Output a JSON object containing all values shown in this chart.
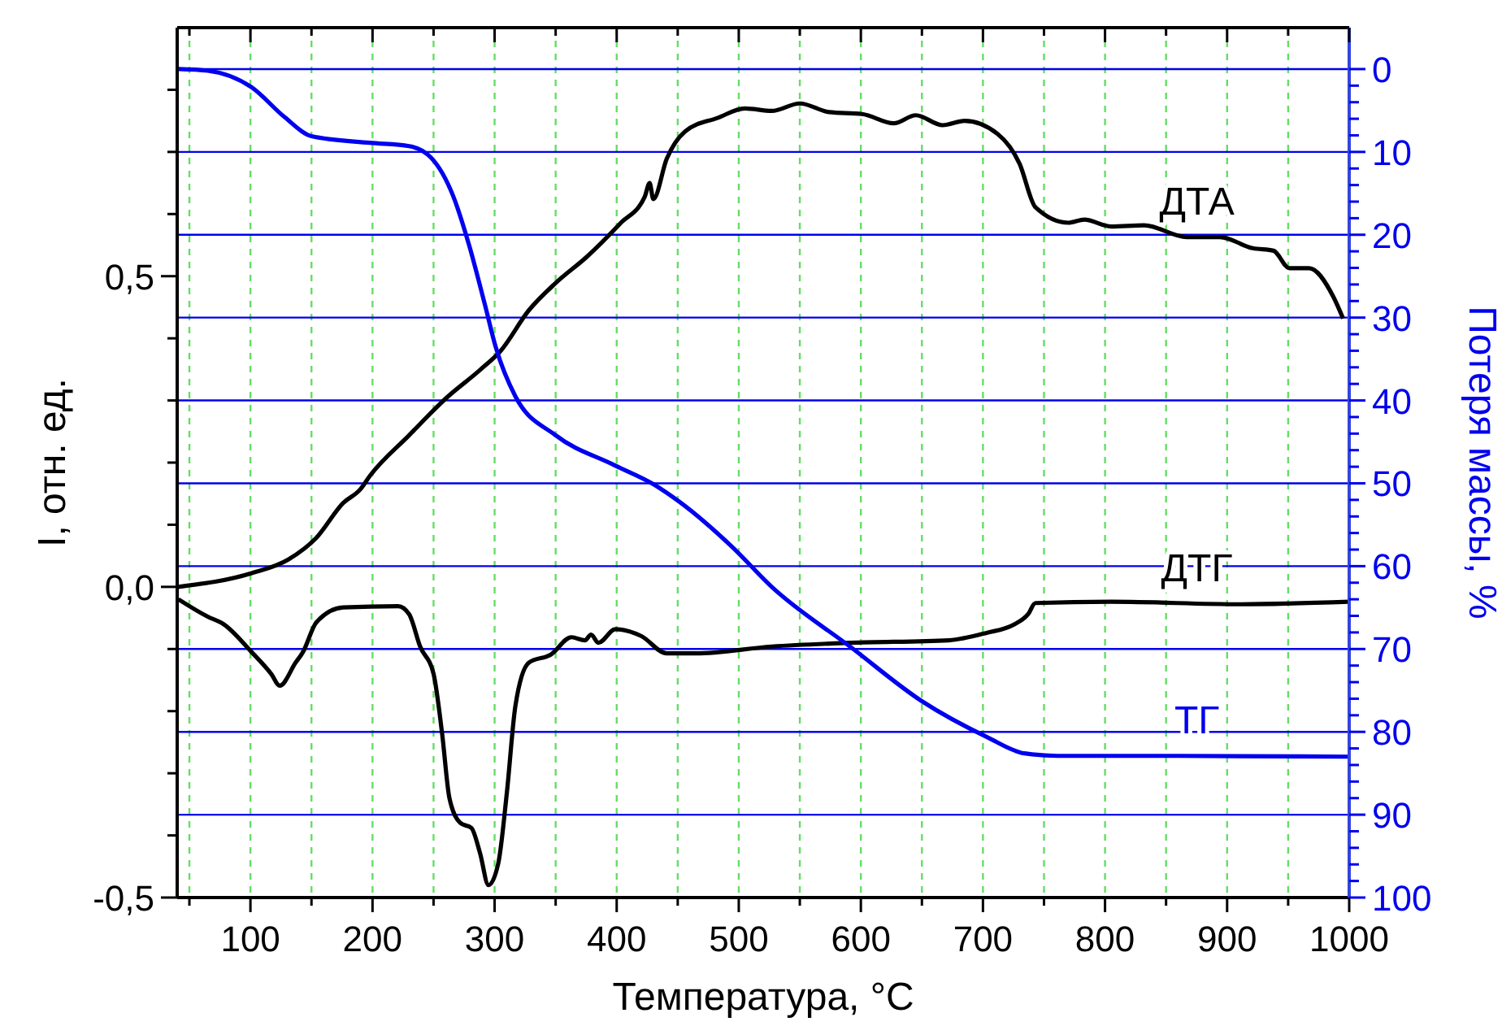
{
  "chart_data": {
    "type": "line",
    "xlabel": "Температура, °C",
    "ylabel": "I, отн. ед.",
    "y2label": "Потеря массы, %",
    "xlim": [
      40,
      1000
    ],
    "xticks": [
      {
        "value": 50,
        "label": null
      },
      100,
      {
        "value": 150,
        "label": null
      },
      200,
      {
        "value": 250,
        "label": null
      },
      300,
      {
        "value": 350,
        "label": null
      },
      400,
      {
        "value": 450,
        "label": null
      },
      500,
      {
        "value": 550,
        "label": null
      },
      600,
      {
        "value": 650,
        "label": null
      },
      700,
      {
        "value": 750,
        "label": null
      },
      800,
      {
        "value": 850,
        "label": null
      },
      900,
      {
        "value": 950,
        "label": null
      },
      1000
    ],
    "ylim": [
      -0.5,
      0.9
    ],
    "yticks": [
      {
        "value": -0.5,
        "label": "-0,5"
      },
      {
        "value": -0.4,
        "label": null
      },
      {
        "value": -0.3,
        "label": null
      },
      {
        "value": -0.2,
        "label": null
      },
      {
        "value": -0.1,
        "label": null
      },
      {
        "value": 0,
        "label": "0,0"
      },
      {
        "value": 0.1,
        "label": null
      },
      {
        "value": 0.2,
        "label": null
      },
      {
        "value": 0.3,
        "label": null
      },
      {
        "value": 0.4,
        "label": null
      },
      {
        "value": 0.5,
        "label": "0,5"
      },
      {
        "value": 0.6,
        "label": null
      },
      {
        "value": 0.7,
        "label": null
      },
      {
        "value": 0.8,
        "label": null
      }
    ],
    "y2lim": [
      100,
      -5
    ],
    "y2ticks": [
      0,
      {
        "value": 2,
        "label": null
      },
      {
        "value": 4,
        "label": null
      },
      {
        "value": 6,
        "label": null
      },
      {
        "value": 8,
        "label": null
      },
      10,
      {
        "value": 12,
        "label": null
      },
      {
        "value": 14,
        "label": null
      },
      {
        "value": 16,
        "label": null
      },
      {
        "value": 18,
        "label": null
      },
      20,
      {
        "value": 22,
        "label": null
      },
      {
        "value": 24,
        "label": null
      },
      {
        "value": 26,
        "label": null
      },
      {
        "value": 28,
        "label": null
      },
      30,
      {
        "value": 32,
        "label": null
      },
      {
        "value": 34,
        "label": null
      },
      {
        "value": 36,
        "label": null
      },
      {
        "value": 38,
        "label": null
      },
      40,
      {
        "value": 42,
        "label": null
      },
      {
        "value": 44,
        "label": null
      },
      {
        "value": 46,
        "label": null
      },
      {
        "value": 48,
        "label": null
      },
      50,
      {
        "value": 52,
        "label": null
      },
      {
        "value": 54,
        "label": null
      },
      {
        "value": 56,
        "label": null
      },
      {
        "value": 58,
        "label": null
      },
      60,
      {
        "value": 62,
        "label": null
      },
      {
        "value": 64,
        "label": null
      },
      {
        "value": 66,
        "label": null
      },
      {
        "value": 68,
        "label": null
      },
      70,
      {
        "value": 72,
        "label": null
      },
      {
        "value": 74,
        "label": null
      },
      {
        "value": 76,
        "label": null
      },
      {
        "value": 78,
        "label": null
      },
      80,
      {
        "value": 82,
        "label": null
      },
      {
        "value": 84,
        "label": null
      },
      {
        "value": 86,
        "label": null
      },
      {
        "value": 88,
        "label": null
      },
      90,
      {
        "value": 92,
        "label": null
      },
      {
        "value": 94,
        "label": null
      },
      {
        "value": 96,
        "label": null
      },
      {
        "value": 98,
        "label": null
      },
      100
    ],
    "grid": true,
    "legend": false,
    "marker": "none",
    "line_style": "solid",
    "series": [
      {
        "name": "ДТА",
        "color": "#000000",
        "x": [
          41,
          101,
          131,
          154,
          176,
          190,
          198,
          230,
          261,
          288,
          305,
          328,
          350,
          376,
          403,
          423,
          427,
          430,
          441,
          456,
          483,
          505,
          527,
          550,
          574,
          601,
          627,
          645,
          667,
          685,
          712,
          730,
          743,
          770,
          783,
          805,
          832,
          867,
          894,
          921,
          938,
          951,
          967,
          987,
          995
        ],
        "values": [
          0.0,
          0.022,
          0.044,
          0.079,
          0.135,
          0.157,
          0.179,
          0.244,
          0.305,
          0.349,
          0.38,
          0.445,
          0.489,
          0.532,
          0.585,
          0.628,
          0.65,
          0.624,
          0.689,
          0.733,
          0.755,
          0.77,
          0.766,
          0.778,
          0.764,
          0.761,
          0.746,
          0.759,
          0.743,
          0.75,
          0.729,
          0.681,
          0.611,
          0.586,
          0.591,
          0.58,
          0.582,
          0.563,
          0.563,
          0.545,
          0.541,
          0.513,
          0.513,
          0.467,
          0.432
        ]
      },
      {
        "name": "ДТГ",
        "color": "#000000",
        "x": [
          41,
          65,
          78,
          101,
          117,
          124,
          137,
          143,
          154,
          176,
          221,
          230,
          239,
          250,
          257,
          263,
          272,
          281,
          288,
          295,
          303,
          310,
          317,
          328,
          346,
          363,
          374,
          379,
          385,
          399,
          420,
          441,
          465,
          527,
          592,
          672,
          703,
          725,
          737,
          743,
          805,
          912,
          1000
        ],
        "values": [
          -0.02,
          -0.048,
          -0.06,
          -0.105,
          -0.14,
          -0.159,
          -0.122,
          -0.105,
          -0.057,
          -0.033,
          -0.031,
          -0.044,
          -0.096,
          -0.14,
          -0.236,
          -0.34,
          -0.38,
          -0.388,
          -0.428,
          -0.48,
          -0.445,
          -0.332,
          -0.192,
          -0.122,
          -0.109,
          -0.081,
          -0.086,
          -0.077,
          -0.09,
          -0.068,
          -0.079,
          -0.107,
          -0.107,
          -0.096,
          -0.09,
          -0.086,
          -0.074,
          -0.061,
          -0.044,
          -0.026,
          -0.024,
          -0.028,
          -0.024
        ]
      },
      {
        "name": "ТГ",
        "color": "#0000ee",
        "axis": "y2",
        "x": [
          41,
          65,
          101,
          128,
          150,
          198,
          230,
          248,
          266,
          279,
          292,
          301,
          317,
          350,
          398,
          430,
          452,
          494,
          527,
          592,
          650,
          703,
          734,
          761,
          861,
          1000
        ],
        "values": [
          0.0,
          0.2,
          2.2,
          5.8,
          8.1,
          8.9,
          9.3,
          10.7,
          15.3,
          21.2,
          28.4,
          33.6,
          39.5,
          44.2,
          47.8,
          50.1,
          52.3,
          57.6,
          62.5,
          69.8,
          76.3,
          80.6,
          82.6,
          82.9,
          82.9,
          83.0
        ]
      }
    ]
  }
}
